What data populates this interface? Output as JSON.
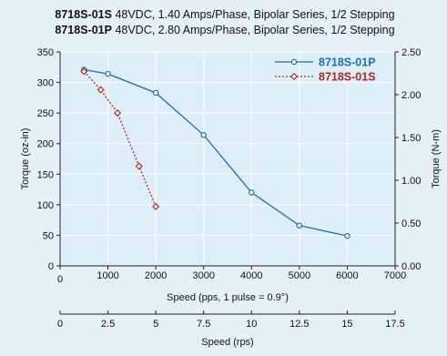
{
  "chart_data": {
    "type": "line",
    "title_lines": [
      {
        "model": "8718S-01S",
        "spec": " 48VDC, 1.40 Amps/Phase, Bipolar Series, 1/2 Stepping"
      },
      {
        "model": "8718S-01P",
        "spec": " 48VDC, 2.80 Amps/Phase, Bipolar Series, 1/2 Stepping"
      }
    ],
    "xlabel": "Speed (pps, 1 pulse = 0.9°)",
    "xlabel2": "Speed (rps)",
    "ylabel_left": "Torque (oz-in)",
    "ylabel_right": "Torque (N-m)",
    "xlim": [
      0,
      7000
    ],
    "ylim": [
      0,
      350
    ],
    "ylim_right": [
      0,
      2.5
    ],
    "x_ticks": [
      "0",
      "1000",
      "2000",
      "3000",
      "4000",
      "5000",
      "6000",
      "7000"
    ],
    "x_tick_values": [
      0,
      1000,
      2000,
      3000,
      4000,
      5000,
      6000,
      7000
    ],
    "y_ticks": [
      "0",
      "50",
      "100",
      "150",
      "200",
      "250",
      "300",
      "350"
    ],
    "y_tick_values": [
      0,
      50,
      100,
      150,
      200,
      250,
      300,
      350
    ],
    "y_right_ticks": [
      "0.00",
      "0.50",
      "1.00",
      "1.50",
      "2.00",
      "2.50"
    ],
    "y_right_tick_values": [
      0,
      0.5,
      1,
      1.5,
      2,
      2.5
    ],
    "x2_ticks": [
      "0",
      "2.5",
      "5",
      "7.5",
      "10",
      "12.5",
      "15",
      "17.5"
    ],
    "x2_tick_values": [
      0,
      2.5,
      5,
      7.5,
      10,
      12.5,
      15,
      17.5
    ],
    "x2_lim": [
      0,
      17.5
    ],
    "grid": true,
    "legend_position": "top-right",
    "series": [
      {
        "name": "8718S-01P",
        "color": "#1e6eb4",
        "line": "solid",
        "marker": "circle",
        "x": [
          500,
          1000,
          2000,
          3000,
          4000,
          5000,
          6000
        ],
        "y": [
          321,
          314,
          283,
          214,
          120,
          66,
          49
        ]
      },
      {
        "name": "8718S-01S",
        "color": "#b02a24",
        "line": "dotted",
        "marker": "diamond",
        "x": [
          500,
          850,
          1200,
          1650,
          2000
        ],
        "y": [
          318,
          288,
          250,
          163,
          97
        ]
      }
    ]
  }
}
